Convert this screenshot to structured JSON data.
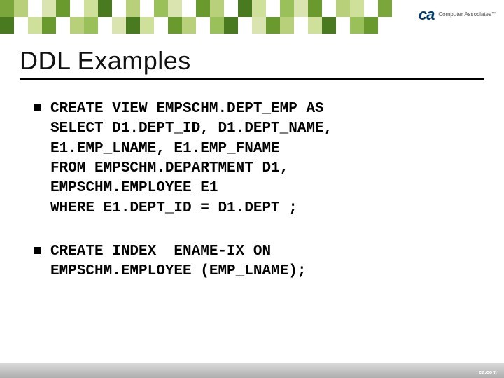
{
  "header": {
    "logo_text": "ca",
    "company_text": "Computer Associates",
    "tm": "™",
    "mosaic_colors_row1": [
      "#7aa63b",
      "#b8d07a",
      "#ffffff",
      "#d9e4b0",
      "#6a9a2e",
      "#ffffff",
      "#cfe09a",
      "#4a7a1f",
      "#ffffff",
      "#b8d07a",
      "#ffffff",
      "#9ac05a",
      "#d9e4b0",
      "#ffffff",
      "#6a9a2e",
      "#b8d07a",
      "#ffffff",
      "#4a7a1f",
      "#cfe09a",
      "#ffffff",
      "#9ac05a",
      "#d9e4b0",
      "#6a9a2e",
      "#ffffff",
      "#b8d07a",
      "#cfe09a",
      "#ffffff",
      "#7aa63b"
    ],
    "mosaic_colors_row2": [
      "#4a7a1f",
      "#ffffff",
      "#cfe09a",
      "#6a9a2e",
      "#ffffff",
      "#b8d07a",
      "#9ac05a",
      "#ffffff",
      "#d9e4b0",
      "#4a7a1f",
      "#cfe09a",
      "#ffffff",
      "#6a9a2e",
      "#b8d07a",
      "#ffffff",
      "#9ac05a",
      "#4a7a1f",
      "#ffffff",
      "#d9e4b0",
      "#6a9a2e",
      "#b8d07a",
      "#ffffff",
      "#cfe09a",
      "#4a7a1f",
      "#ffffff",
      "#9ac05a",
      "#6a9a2e",
      "#ffffff"
    ]
  },
  "title": "DDL Examples",
  "bullets": [
    "CREATE VIEW EMPSCHM.DEPT_EMP AS\nSELECT D1.DEPT_ID, D1.DEPT_NAME,\nE1.EMP_LNAME, E1.EMP_FNAME\nFROM EMPSCHM.DEPARTMENT D1,\nEMPSCHM.EMPLOYEE E1\nWHERE E1.DEPT_ID = D1.DEPT ;",
    "CREATE INDEX  ENAME-IX ON\nEMPSCHM.EMPLOYEE (EMP_LNAME);"
  ],
  "footer": "ca.com"
}
